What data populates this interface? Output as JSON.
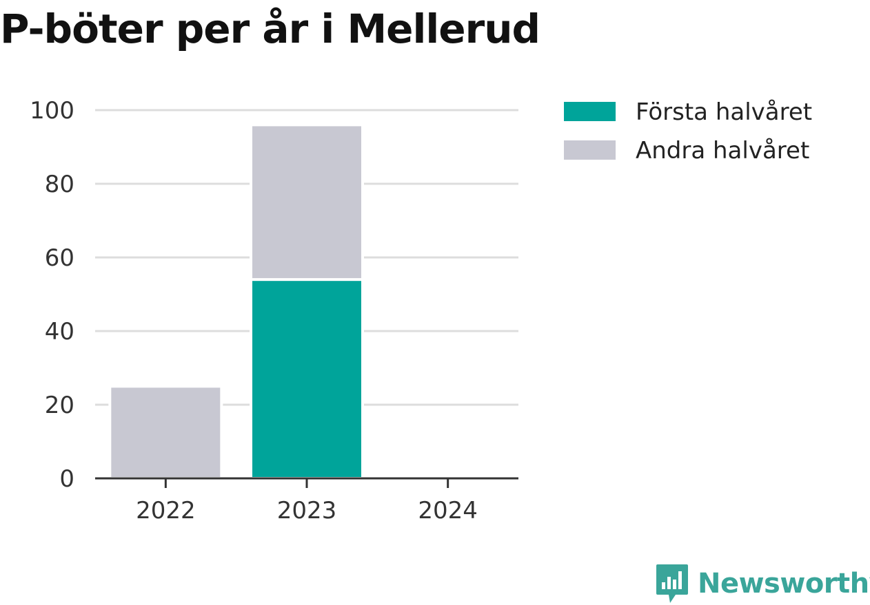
{
  "title": "P-böter per år i Mellerud",
  "brand": {
    "name": "Newsworthy",
    "icon": "newsworthy-logo-icon",
    "color": "#3aa59a"
  },
  "chart_data": {
    "type": "bar",
    "stacked": true,
    "title": "P-böter per år i Mellerud",
    "categories": [
      "2022",
      "2023",
      "2024"
    ],
    "series": [
      {
        "name": "Första halvåret",
        "color": "#00a49a",
        "values": [
          0,
          54,
          0
        ]
      },
      {
        "name": "Andra halvåret",
        "color": "#c8c8d2",
        "values": [
          25,
          42,
          0
        ]
      }
    ],
    "yticks": [
      0,
      20,
      40,
      60,
      80,
      100
    ],
    "ylim": [
      0,
      100
    ],
    "grid": true,
    "legend": "right"
  }
}
